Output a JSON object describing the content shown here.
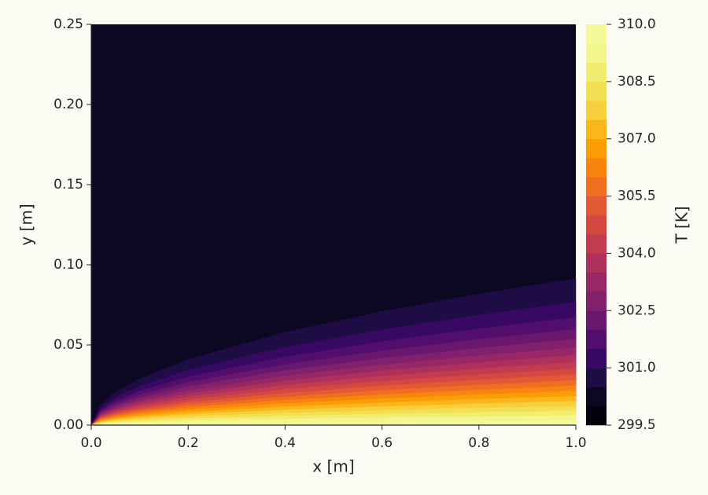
{
  "chart_data": {
    "type": "contourf",
    "xlabel": "x [m]",
    "ylabel": "y [m]",
    "xlim": [
      0,
      1.0
    ],
    "ylim": [
      0,
      0.25
    ],
    "xticks": [
      {
        "value": 0,
        "label": "0.0"
      },
      {
        "value": 0.2,
        "label": "0.2"
      },
      {
        "value": 0.4,
        "label": "0.4"
      },
      {
        "value": 0.6,
        "label": "0.6"
      },
      {
        "value": 0.8,
        "label": "0.8"
      },
      {
        "value": 1.0,
        "label": "1.0"
      }
    ],
    "yticks": [
      {
        "value": 0,
        "label": "0.00"
      },
      {
        "value": 0.05,
        "label": "0.05"
      },
      {
        "value": 0.1,
        "label": "0.10"
      },
      {
        "value": 0.15,
        "label": "0.15"
      },
      {
        "value": 0.2,
        "label": "0.20"
      },
      {
        "value": 0.25,
        "label": "0.25"
      }
    ],
    "x": [
      0,
      0.02,
      0.05,
      0.1,
      0.2,
      0.4,
      0.6,
      0.8,
      1.0
    ],
    "background_level": 300.0,
    "contours": [
      {
        "level": 300.5,
        "values": [
          0,
          0.0129,
          0.0205,
          0.0289,
          0.0409,
          0.0579,
          0.0709,
          0.0818,
          0.0915
        ]
      },
      {
        "level": 301.0,
        "values": [
          0,
          0.0109,
          0.0172,
          0.0243,
          0.0343,
          0.0486,
          0.0595,
          0.0687,
          0.0768
        ]
      },
      {
        "level": 301.5,
        "values": [
          0,
          0.0095,
          0.015,
          0.0212,
          0.0301,
          0.0425,
          0.0521,
          0.0601,
          0.0672
        ]
      },
      {
        "level": 302.0,
        "values": [
          0,
          0.0085,
          0.0134,
          0.0189,
          0.0267,
          0.0378,
          0.0463,
          0.0535,
          0.0598
        ]
      },
      {
        "level": 302.5,
        "values": [
          0,
          0.0076,
          0.012,
          0.017,
          0.024,
          0.034,
          0.0416,
          0.048,
          0.0537
        ]
      },
      {
        "level": 303.0,
        "values": [
          0,
          0.0068,
          0.0108,
          0.0153,
          0.0216,
          0.0306,
          0.0375,
          0.0433,
          0.0484
        ]
      },
      {
        "level": 303.5,
        "values": [
          0,
          0.0062,
          0.0097,
          0.0138,
          0.0195,
          0.0276,
          0.0338,
          0.039,
          0.0436
        ]
      },
      {
        "level": 304.0,
        "values": [
          0,
          0.0056,
          0.0088,
          0.0124,
          0.0176,
          0.0249,
          0.0304,
          0.0351,
          0.0393
        ]
      },
      {
        "level": 304.5,
        "values": [
          0,
          0.005,
          0.0079,
          0.0111,
          0.0157,
          0.0223,
          0.0273,
          0.0315,
          0.0352
        ]
      },
      {
        "level": 305.0,
        "values": [
          0,
          0.0045,
          0.007,
          0.01,
          0.0141,
          0.0199,
          0.0244,
          0.0282,
          0.0315
        ]
      },
      {
        "level": 305.5,
        "values": [
          0,
          0.0039,
          0.0062,
          0.0088,
          0.0125,
          0.0176,
          0.0216,
          0.025,
          0.0279
        ]
      },
      {
        "level": 306.0,
        "values": [
          0,
          0.0035,
          0.0055,
          0.0077,
          0.011,
          0.0155,
          0.019,
          0.0219,
          0.0245
        ]
      },
      {
        "level": 306.5,
        "values": [
          0,
          0.003,
          0.0047,
          0.0067,
          0.0095,
          0.0134,
          0.0164,
          0.019,
          0.0212
        ]
      },
      {
        "level": 307.0,
        "values": [
          0,
          0.0025,
          0.004,
          0.0057,
          0.008,
          0.0114,
          0.0139,
          0.0161,
          0.018
        ]
      },
      {
        "level": 307.5,
        "values": [
          0,
          0.0021,
          0.0033,
          0.0047,
          0.0067,
          0.0094,
          0.0115,
          0.0133,
          0.0149
        ]
      },
      {
        "level": 308.0,
        "values": [
          0,
          0.0017,
          0.0026,
          0.0037,
          0.0053,
          0.0075,
          0.0091,
          0.0106,
          0.0118
        ]
      },
      {
        "level": 308.5,
        "values": [
          0,
          0.0012,
          0.002,
          0.0028,
          0.0039,
          0.0056,
          0.0068,
          0.0079,
          0.0088
        ]
      },
      {
        "level": 309.0,
        "values": [
          0,
          0.0008,
          0.0013,
          0.0019,
          0.0026,
          0.0037,
          0.0046,
          0.0053,
          0.0059
        ]
      },
      {
        "level": 309.5,
        "values": [
          0,
          0.0004,
          0.0006,
          0.0009,
          0.0013,
          0.0018,
          0.0022,
          0.0026,
          0.0029
        ]
      }
    ],
    "levels": [
      299.5,
      300.0,
      300.5,
      301.0,
      301.5,
      302.0,
      302.5,
      303.0,
      303.5,
      304.0,
      304.5,
      305.0,
      305.5,
      306.0,
      306.5,
      307.0,
      307.5,
      308.0,
      308.5,
      309.0,
      309.5,
      310.0
    ],
    "colors": [
      "#03020d",
      "#0c0822",
      "#1e0c45",
      "#380962",
      "#510e6c",
      "#6a176e",
      "#81206c",
      "#982766",
      "#ae305c",
      "#c33b4f",
      "#d44842",
      "#e35933",
      "#ef6e21",
      "#f7850e",
      "#fb9d07",
      "#fbb61a",
      "#f6d03c",
      "#f4df53",
      "#f1ed71",
      "#f3f68a",
      "#f4f79a"
    ],
    "colorbar_label": "T [K]",
    "colorbar_ticks": [
      {
        "value": 299.5,
        "label": "299.5"
      },
      {
        "value": 301.0,
        "label": "301.0"
      },
      {
        "value": 302.5,
        "label": "302.5"
      },
      {
        "value": 304.0,
        "label": "304.0"
      },
      {
        "value": 305.5,
        "label": "305.5"
      },
      {
        "value": 307.0,
        "label": "307.0"
      },
      {
        "value": 308.5,
        "label": "308.5"
      },
      {
        "value": 310.0,
        "label": "310.0"
      }
    ]
  }
}
